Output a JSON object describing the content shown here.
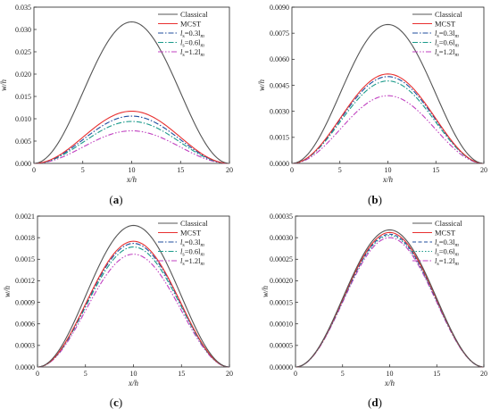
{
  "chart_data": [
    {
      "type": "line",
      "panel_label": "(a)",
      "xlabel": "x/h",
      "ylabel": "w/h",
      "xlim": [
        0,
        20
      ],
      "ylim": [
        0,
        0.035
      ],
      "x_ticks": [
        "0",
        "5",
        "10",
        "15",
        "20"
      ],
      "y_ticks": [
        "0.000",
        "0.005",
        "0.010",
        "0.015",
        "0.020",
        "0.025",
        "0.030",
        "0.035"
      ],
      "legend_position": "top-right",
      "series": [
        {
          "name": "Classical",
          "peak": 0.0317,
          "color": "#555555",
          "dash": "solid"
        },
        {
          "name": "MCST",
          "peak": 0.0117,
          "color": "#e83030",
          "dash": "solid"
        },
        {
          "name": "l_s=0.3l_m",
          "label_main": "l",
          "label_sub": "s",
          "label_rest": "=0.3l",
          "label_sub2": "m",
          "peak": 0.0106,
          "color": "#1f4e9e",
          "dash": "dashdot"
        },
        {
          "name": "l_s=0.6l_m",
          "label_main": "l",
          "label_sub": "s",
          "label_rest": "=0.6l",
          "label_sub2": "m",
          "peak": 0.0094,
          "color": "#1a9a8a",
          "dash": "dashdot"
        },
        {
          "name": "l_s=1.2l_m",
          "label_main": "l",
          "label_sub": "s",
          "label_rest": "=1.2l",
          "label_sub2": "m",
          "peak": 0.0073,
          "color": "#c040c0",
          "dash": "dashdotdot"
        }
      ]
    },
    {
      "type": "line",
      "panel_label": "(b)",
      "xlabel": "x/h",
      "ylabel": "w/h",
      "xlim": [
        0,
        20
      ],
      "ylim": [
        0,
        0.009
      ],
      "x_ticks": [
        "0",
        "5",
        "10",
        "15",
        "20"
      ],
      "y_ticks": [
        "0.0000",
        "0.0015",
        "0.0030",
        "0.0045",
        "0.0060",
        "0.0075",
        "0.0090"
      ],
      "legend_position": "top-right",
      "series": [
        {
          "name": "Classical",
          "peak": 0.008,
          "color": "#555555",
          "dash": "solid"
        },
        {
          "name": "MCST",
          "peak": 0.00515,
          "color": "#e83030",
          "dash": "solid"
        },
        {
          "name": "l_s=0.3l_m",
          "label_main": "l",
          "label_sub": "s",
          "label_rest": "=0.3l",
          "label_sub2": "m",
          "peak": 0.005,
          "color": "#1f4e9e",
          "dash": "dashdot"
        },
        {
          "name": "l_s=0.6l_m",
          "label_main": "l",
          "label_sub": "s",
          "label_rest": "=0.6l",
          "label_sub2": "m",
          "peak": 0.00475,
          "color": "#1a9a8a",
          "dash": "dashdot"
        },
        {
          "name": "l_s=1.2l_m",
          "label_main": "l",
          "label_sub": "s",
          "label_rest": "=1.2l",
          "label_sub2": "m",
          "peak": 0.0039,
          "color": "#c040c0",
          "dash": "dashdotdot"
        }
      ]
    },
    {
      "type": "line",
      "panel_label": "(c)",
      "xlabel": "x/h",
      "ylabel": "w/h",
      "xlim": [
        0,
        20
      ],
      "ylim": [
        0,
        0.0021
      ],
      "x_ticks": [
        "0",
        "5",
        "10",
        "15",
        "20"
      ],
      "y_ticks": [
        "0.0000",
        "0.0003",
        "0.0006",
        "0.0009",
        "0.0012",
        "0.0015",
        "0.0018",
        "0.0021"
      ],
      "legend_position": "top-right",
      "series": [
        {
          "name": "Classical",
          "peak": 0.00197,
          "color": "#555555",
          "dash": "solid"
        },
        {
          "name": "MCST",
          "peak": 0.00175,
          "color": "#e83030",
          "dash": "solid"
        },
        {
          "name": "l_s=0.3l_m",
          "label_main": "l",
          "label_sub": "s",
          "label_rest": "=0.3l",
          "label_sub2": "m",
          "peak": 0.00172,
          "color": "#1f4e9e",
          "dash": "dashdot"
        },
        {
          "name": "l_s=0.6l_m",
          "label_main": "l",
          "label_sub": "s",
          "label_rest": "=0.6l",
          "label_sub2": "m",
          "peak": 0.00167,
          "color": "#1a9a8a",
          "dash": "dashdot"
        },
        {
          "name": "l_s=1.2l_m",
          "label_main": "l",
          "label_sub": "s",
          "label_rest": "=1.2l",
          "label_sub2": "m",
          "peak": 0.00157,
          "color": "#c040c0",
          "dash": "dashdotdot"
        }
      ]
    },
    {
      "type": "line",
      "panel_label": "(d)",
      "xlabel": "x/h",
      "ylabel": "w/h",
      "xlim": [
        0,
        20
      ],
      "ylim": [
        0,
        0.00035
      ],
      "x_ticks": [
        "0",
        "5",
        "10",
        "15",
        "20"
      ],
      "y_ticks": [
        "0.00000",
        "0.00005",
        "0.00010",
        "0.00015",
        "0.00020",
        "0.00025",
        "0.00030",
        "0.00035"
      ],
      "legend_position": "top-right",
      "series": [
        {
          "name": "Classical",
          "peak": 0.000318,
          "color": "#555555",
          "dash": "solid"
        },
        {
          "name": "MCST",
          "peak": 0.000312,
          "color": "#e83030",
          "dash": "solid"
        },
        {
          "name": "l_s=0.3l_m",
          "label_main": "l",
          "label_sub": "s",
          "label_rest": "=0.3l",
          "label_sub2": "m",
          "peak": 0.000308,
          "color": "#1f4e9e",
          "dash": "dashed"
        },
        {
          "name": "l_s=0.6l_m",
          "label_main": "l",
          "label_sub": "s",
          "label_rest": "=0.6l",
          "label_sub2": "m",
          "peak": 0.000305,
          "color": "#1a9a8a",
          "dash": "dotted"
        },
        {
          "name": "l_s=1.2l_m",
          "label_main": "l",
          "label_sub": "s",
          "label_rest": "=1.2l",
          "label_sub2": "m",
          "peak": 0.0003,
          "color": "#c040c0",
          "dash": "dashdot"
        }
      ]
    }
  ]
}
